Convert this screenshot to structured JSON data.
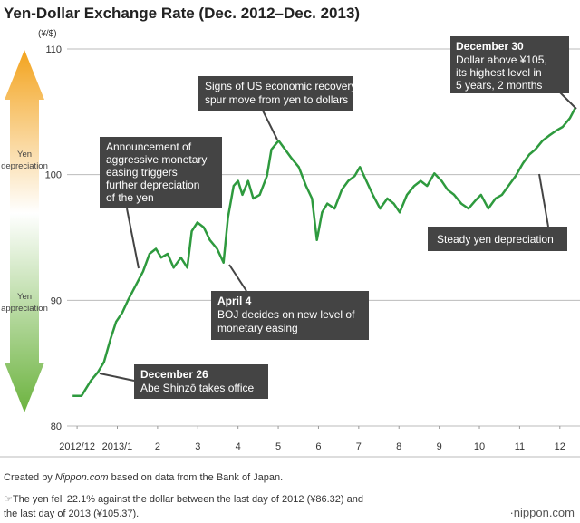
{
  "chart_data": {
    "type": "line",
    "title": "Yen-Dollar Exchange Rate (Dec. 2012–Dec. 2013)",
    "y_unit": "(¥/$)",
    "x": [
      -0.11,
      0.11,
      0.34,
      0.52,
      0.67,
      0.83,
      0.97,
      1.12,
      1.28,
      1.46,
      1.64,
      1.8,
      1.96,
      2.09,
      2.25,
      2.4,
      2.58,
      2.74,
      2.85,
      2.99,
      3.15,
      3.3,
      3.48,
      3.64,
      3.75,
      3.89,
      4.0,
      4.11,
      4.25,
      4.38,
      4.54,
      4.72,
      4.83,
      5.01,
      5.17,
      5.33,
      5.51,
      5.69,
      5.84,
      5.96,
      6.09,
      6.22,
      6.4,
      6.58,
      6.74,
      6.9,
      7.03,
      7.19,
      7.35,
      7.53,
      7.71,
      7.87,
      8.02,
      8.2,
      8.38,
      8.54,
      8.7,
      8.88,
      9.06,
      9.21,
      9.37,
      9.55,
      9.73,
      9.89,
      10.04,
      10.22,
      10.4,
      10.56,
      10.72,
      10.9,
      11.08,
      11.24,
      11.39,
      11.57,
      11.73,
      11.91,
      12.07,
      12.25,
      12.38
    ],
    "series": [
      {
        "name": "Yen-Dollar",
        "color": "#2e9a3e",
        "values": [
          82.4,
          82.4,
          83.6,
          84.3,
          85.1,
          86.9,
          88.3,
          89.0,
          90.1,
          91.2,
          92.3,
          93.7,
          94.1,
          93.4,
          93.7,
          92.6,
          93.4,
          92.6,
          95.5,
          96.2,
          95.8,
          94.8,
          94.1,
          93.0,
          96.6,
          99.1,
          99.5,
          98.4,
          99.5,
          98.1,
          98.4,
          99.9,
          102.0,
          102.7,
          102.0,
          101.3,
          100.6,
          99.1,
          98.1,
          94.8,
          97.0,
          97.7,
          97.3,
          98.8,
          99.5,
          99.9,
          100.6,
          99.5,
          98.4,
          97.3,
          98.1,
          97.7,
          97.0,
          98.4,
          99.1,
          99.5,
          99.1,
          100.1,
          99.5,
          98.8,
          98.4,
          97.7,
          97.3,
          97.9,
          98.4,
          97.3,
          98.1,
          98.4,
          99.1,
          99.9,
          100.9,
          101.6,
          102.0,
          102.7,
          103.1,
          103.5,
          103.8,
          104.5,
          105.3
        ]
      }
    ],
    "xlim": [
      -0.25,
      12.5
    ],
    "xticks": [
      {
        "value": 0,
        "label": "2012/12"
      },
      {
        "value": 1,
        "label": "2013/1"
      },
      2,
      3,
      4,
      5,
      6,
      7,
      8,
      9,
      10,
      11,
      12
    ],
    "ylim": [
      80,
      110
    ],
    "yticks": [
      80,
      90,
      100,
      110
    ],
    "grid": true,
    "side_labels": {
      "top": [
        "Yen",
        "depreciation"
      ],
      "bottom": [
        "Yen",
        "appreciation"
      ]
    },
    "annotations": [
      {
        "heading": "December 30",
        "lines": [
          "Dollar above ¥105,",
          "its highest level in",
          "5 years, 2 months"
        ]
      },
      {
        "lines": [
          "Signs of US economic recovery",
          "spur move from yen to dollars"
        ]
      },
      {
        "lines": [
          "Announcement of",
          "aggressive monetary",
          "easing triggers",
          "further depreciation",
          "of the yen"
        ]
      },
      {
        "heading": "April 4",
        "lines": [
          "BOJ decides on new level of",
          "monetary easing"
        ]
      },
      {
        "heading": "December 26",
        "lines": [
          "Abe Shinzō takes office"
        ]
      },
      {
        "lines": [
          "Steady yen depreciation"
        ]
      }
    ]
  },
  "footer": {
    "credit_prefix": "Created by ",
    "credit_name": "Nippon.com",
    "credit_suffix": " based on data from the Bank of Japan.",
    "note": [
      "☞The yen fell 22.1% against the dollar between the last day of 2012 (¥86.32) and",
      "the last day of 2013 (¥105.37)."
    ],
    "logo": "·nippon.com"
  }
}
